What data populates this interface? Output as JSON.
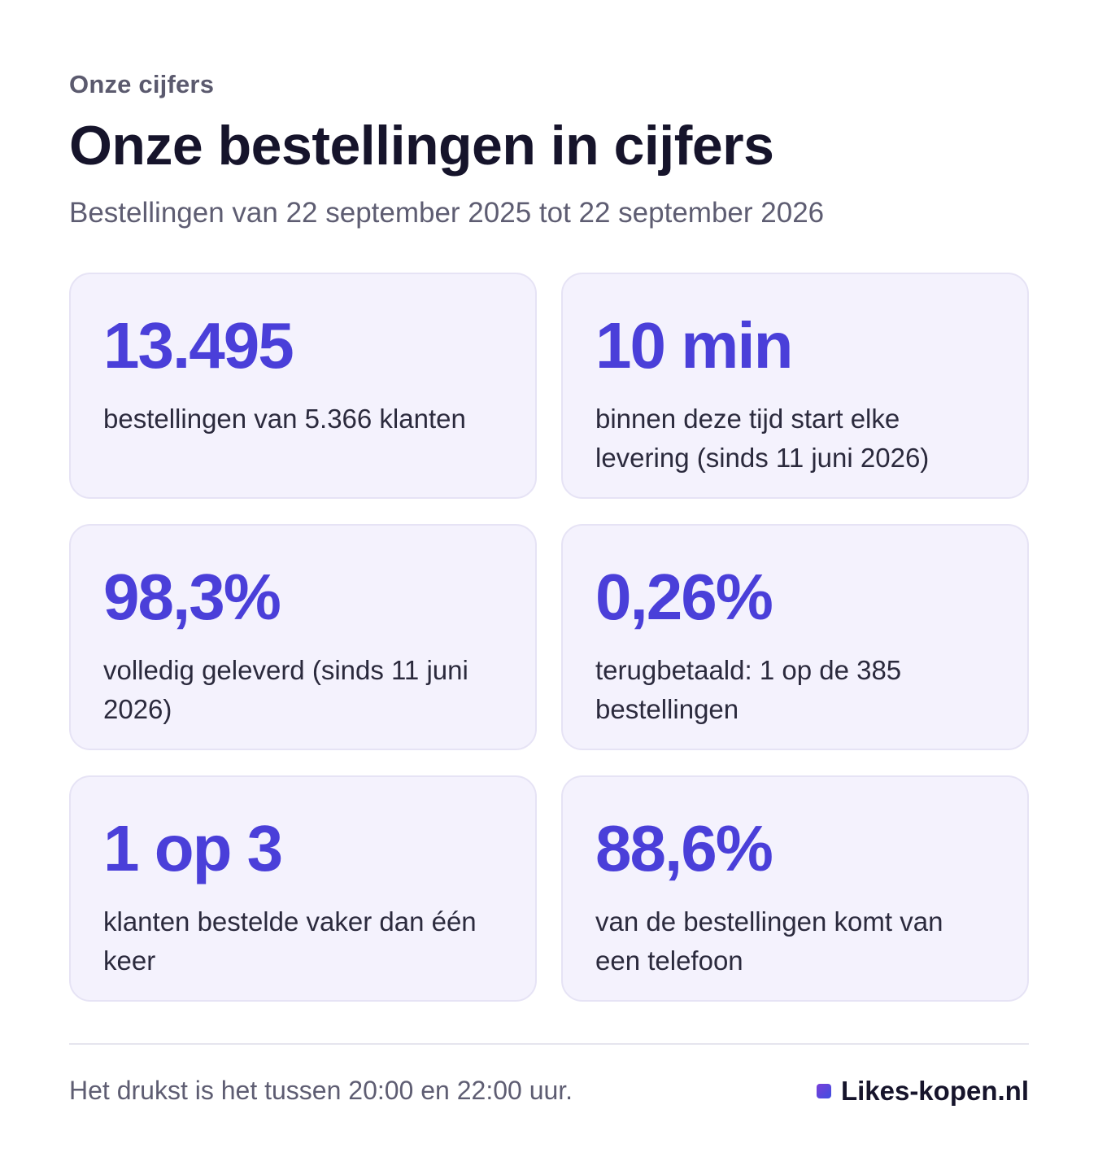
{
  "header": {
    "eyebrow": "Onze cijfers",
    "title": "Onze bestellingen in cijfers",
    "subtitle": "Bestellingen van 22 september 2025 tot 22 september 2026"
  },
  "stats": [
    {
      "value": "13.495",
      "description": "bestellingen van 5.366 klanten"
    },
    {
      "value": "10 min",
      "description": "binnen deze tijd start elke levering (sinds 11 juni 2026)"
    },
    {
      "value": "98,3%",
      "description": "volledig geleverd (sinds 11 juni 2026)"
    },
    {
      "value": "0,26%",
      "description": "terugbetaald: 1 op de 385 bestellingen"
    },
    {
      "value": "1 op 3",
      "description": "klanten bestelde vaker dan één keer"
    },
    {
      "value": "88,6%",
      "description": "van de bestellingen komt van een telefoon"
    }
  ],
  "footer": {
    "note": "Het drukst is het tussen 20:00 en 22:00 uur.",
    "brand": "Likes-kopen.nl"
  },
  "colors": {
    "accent": "#4a3fd9",
    "card_background": "#f4f2fd",
    "card_border": "#e6e3f5"
  }
}
